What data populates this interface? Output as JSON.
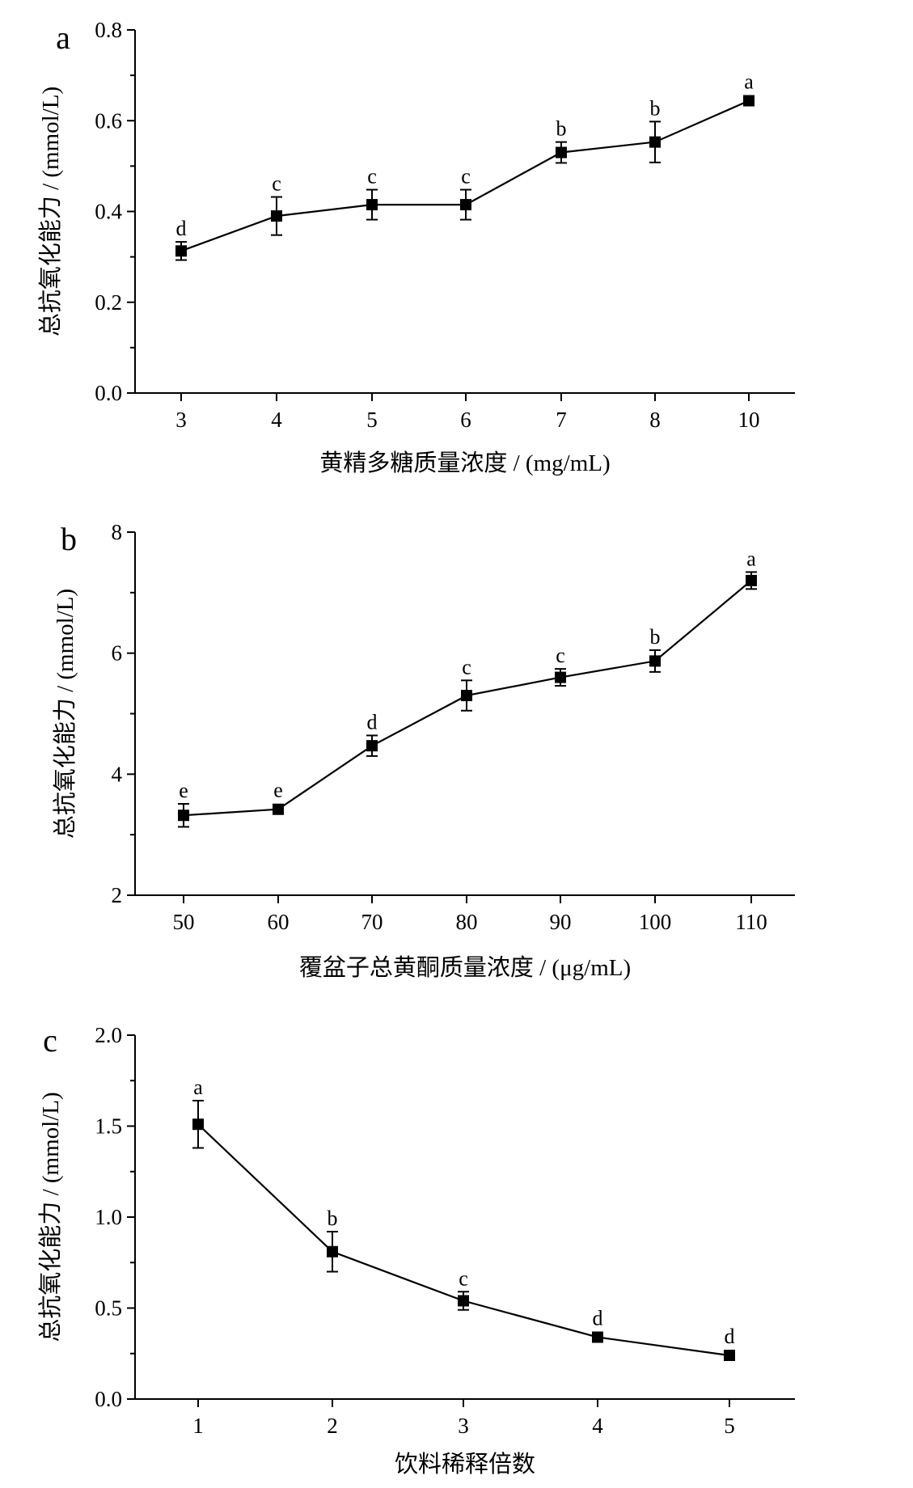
{
  "chart_data": [
    {
      "type": "line",
      "panel_label": "a",
      "xlabel": "黄精多糖质量浓度 / (mg/mL)",
      "ylabel": "总抗氧化能力 / (mmol/L)",
      "categories": [
        "3",
        "4",
        "5",
        "6",
        "7",
        "8",
        "10"
      ],
      "values": [
        0.313,
        0.39,
        0.415,
        0.415,
        0.53,
        0.553,
        0.644
      ],
      "errors": [
        0.02,
        0.042,
        0.033,
        0.033,
        0.023,
        0.045,
        0.006
      ],
      "significance": [
        "d",
        "c",
        "c",
        "c",
        "b",
        "b",
        "a"
      ],
      "ylim": [
        0,
        0.8
      ],
      "yticks": [
        "0.0",
        "0.2",
        "0.4",
        "0.6",
        "0.8"
      ],
      "grid": false,
      "marker": "square",
      "color": "#000000"
    },
    {
      "type": "line",
      "panel_label": "b",
      "xlabel": "覆盆子总黄酮质量浓度 / (μg/mL)",
      "ylabel": "总抗氧化能力 / (mmol/L)",
      "categories": [
        "50",
        "60",
        "70",
        "80",
        "90",
        "100",
        "110"
      ],
      "values": [
        3.32,
        3.42,
        4.47,
        5.3,
        5.6,
        5.87,
        7.2
      ],
      "errors": [
        0.19,
        0.03,
        0.17,
        0.25,
        0.14,
        0.18,
        0.14
      ],
      "significance": [
        "e",
        "e",
        "d",
        "c",
        "c",
        "b",
        "a"
      ],
      "ylim": [
        2,
        8
      ],
      "yticks": [
        "2",
        "4",
        "6",
        "8"
      ],
      "grid": false,
      "marker": "square",
      "color": "#000000"
    },
    {
      "type": "line",
      "panel_label": "c",
      "xlabel": "饮料稀释倍数",
      "ylabel": "总抗氧化能力 / (mmol/L)",
      "categories": [
        "1",
        "2",
        "3",
        "4",
        "5"
      ],
      "values": [
        1.51,
        0.81,
        0.54,
        0.34,
        0.24
      ],
      "errors": [
        0.13,
        0.11,
        0.05,
        0.01,
        0.01
      ],
      "significance": [
        "a",
        "b",
        "c",
        "d",
        "d"
      ],
      "ylim": [
        0,
        2.0
      ],
      "yticks": [
        "0.0",
        "0.5",
        "1.0",
        "1.5",
        "2.0"
      ],
      "grid": false,
      "marker": "square",
      "color": "#000000"
    }
  ]
}
